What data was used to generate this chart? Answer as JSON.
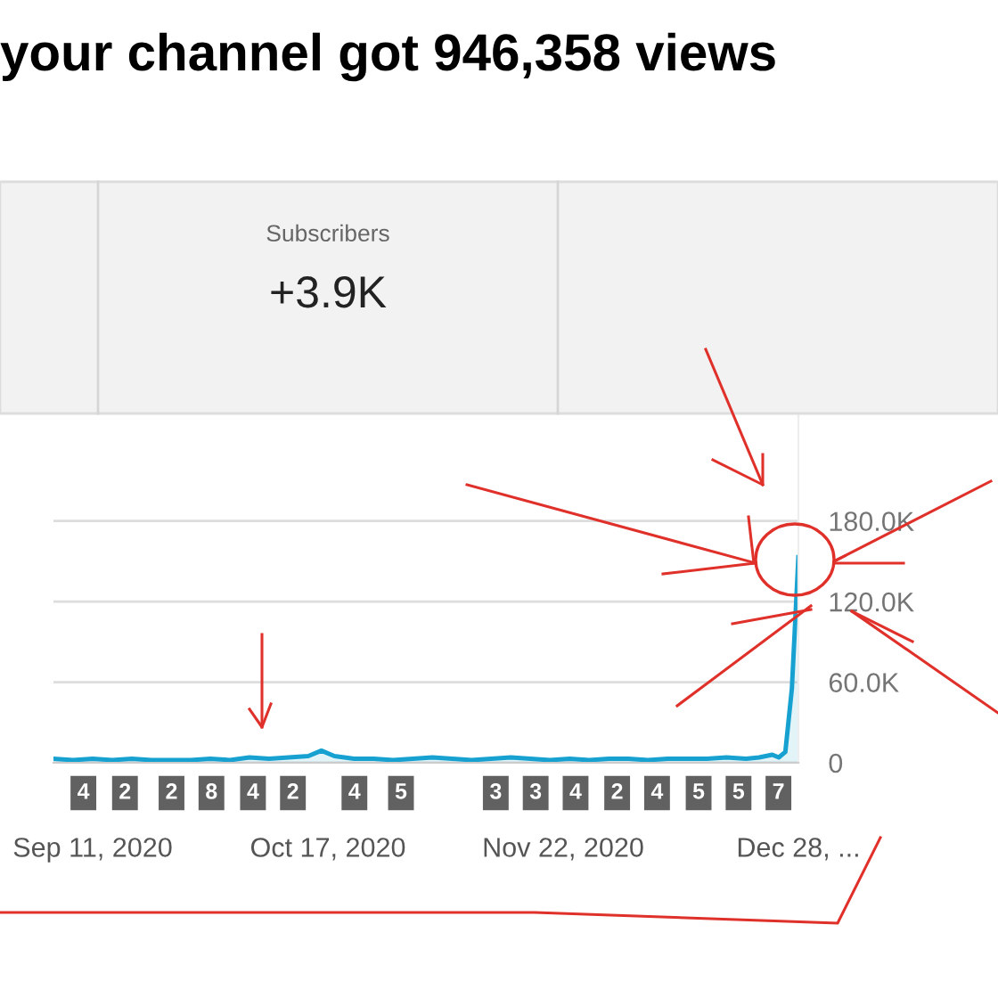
{
  "chart_data": {
    "type": "area",
    "title": "your channel got 946,358 views",
    "x": [
      "2020-09-05",
      "2020-09-08",
      "2020-09-11",
      "2020-09-14",
      "2020-09-17",
      "2020-09-20",
      "2020-09-23",
      "2020-09-26",
      "2020-09-29",
      "2020-10-02",
      "2020-10-05",
      "2020-10-08",
      "2020-10-11",
      "2020-10-14",
      "2020-10-16",
      "2020-10-18",
      "2020-10-21",
      "2020-10-24",
      "2020-10-27",
      "2020-10-30",
      "2020-11-02",
      "2020-11-05",
      "2020-11-08",
      "2020-11-11",
      "2020-11-14",
      "2020-11-17",
      "2020-11-20",
      "2020-11-23",
      "2020-11-26",
      "2020-11-29",
      "2020-12-02",
      "2020-12-05",
      "2020-12-08",
      "2020-12-11",
      "2020-12-14",
      "2020-12-17",
      "2020-12-20",
      "2020-12-22",
      "2020-12-24",
      "2020-12-25",
      "2020-12-26",
      "2020-12-27",
      "2020-12-28"
    ],
    "series": [
      {
        "color": "#16a1d1",
        "values": [
          3000,
          2000,
          3000,
          2000,
          3000,
          2000,
          2000,
          2000,
          3000,
          2000,
          4000,
          3000,
          4000,
          5000,
          9000,
          5000,
          3000,
          3000,
          2000,
          3000,
          4000,
          3000,
          2000,
          3000,
          4000,
          3000,
          2000,
          3000,
          2000,
          3000,
          3000,
          2000,
          3000,
          3000,
          3000,
          4000,
          3000,
          4000,
          6000,
          4000,
          8000,
          55000,
          153000
        ]
      }
    ],
    "xlim": [
      "2020-09-05",
      "2020-12-28"
    ],
    "xticks": [
      {
        "value": "2020-09-11",
        "label": "Sep 11, 2020"
      },
      {
        "value": "2020-10-17",
        "label": "Oct 17, 2020"
      },
      {
        "value": "2020-11-22",
        "label": "Nov 22, 2020"
      },
      {
        "value": "2020-12-28",
        "label": "Dec 28, ..."
      }
    ],
    "ylim": [
      0,
      260000
    ],
    "yticks": [
      0,
      {
        "value": 60000,
        "label": "60.0K"
      },
      {
        "value": 120000,
        "label": "120.0K"
      },
      {
        "value": 180000,
        "label": "180.0K"
      }
    ],
    "grid": "y",
    "annotations": [
      "Subscribers",
      "+3.9K",
      "4",
      "2",
      "2",
      "8",
      "4",
      "2",
      "4",
      "5",
      "3",
      "3",
      "4",
      "2",
      "4",
      "5",
      "5",
      "7"
    ]
  }
}
